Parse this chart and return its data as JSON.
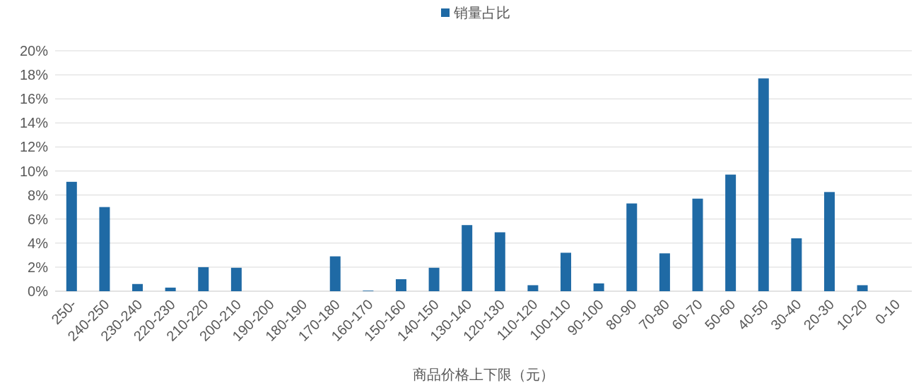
{
  "chart_data": {
    "type": "bar",
    "xlabel": "商品价格上下限（元）",
    "legend": "top",
    "grid": "y",
    "categories": [
      "250-",
      "240-250",
      "230-240",
      "220-230",
      "210-220",
      "200-210",
      "190-200",
      "180-190",
      "170-180",
      "160-170",
      "150-160",
      "140-150",
      "130-140",
      "120-130",
      "110-120",
      "100-110",
      "90-100",
      "80-90",
      "70-80",
      "60-70",
      "50-60",
      "40-50",
      "30-40",
      "20-30",
      "10-20",
      "0-10"
    ],
    "series": [
      {
        "name": "销量占比",
        "color": "#1f6aa5",
        "values": [
          9.1,
          7.0,
          0.6,
          0.3,
          2.0,
          1.95,
          0,
          0,
          2.9,
          0.05,
          1.0,
          1.95,
          5.5,
          4.9,
          0.5,
          3.2,
          0.65,
          7.3,
          3.15,
          7.7,
          9.7,
          17.7,
          4.4,
          8.25,
          0.5,
          0
        ]
      }
    ],
    "ylim": [
      0,
      20
    ],
    "yticks": [
      {
        "value": 0,
        "label": "0%"
      },
      {
        "value": 2,
        "label": "2%"
      },
      {
        "value": 4,
        "label": "4%"
      },
      {
        "value": 6,
        "label": "6%"
      },
      {
        "value": 8,
        "label": "8%"
      },
      {
        "value": 10,
        "label": "10%"
      },
      {
        "value": 12,
        "label": "12%"
      },
      {
        "value": 14,
        "label": "14%"
      },
      {
        "value": 16,
        "label": "16%"
      },
      {
        "value": 18,
        "label": "18%"
      },
      {
        "value": 20,
        "label": "20%"
      }
    ]
  }
}
